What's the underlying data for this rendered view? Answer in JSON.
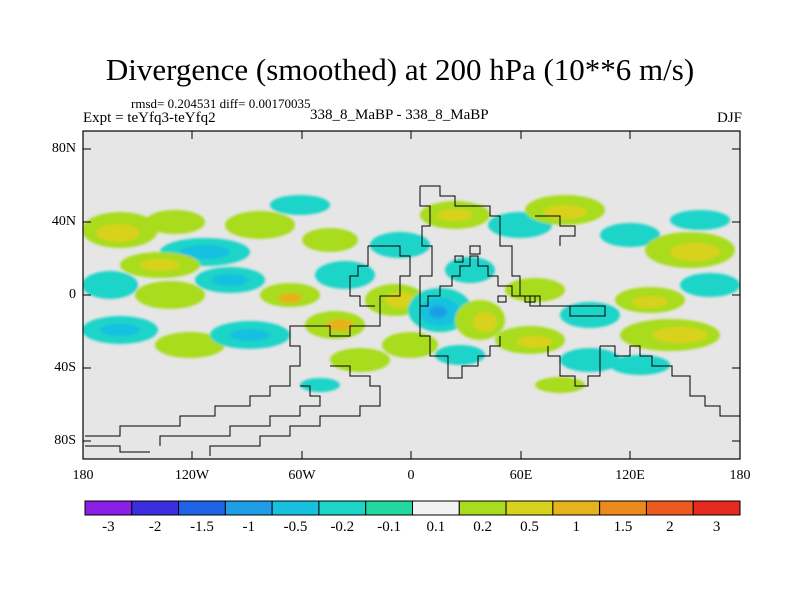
{
  "title": "Divergence (smoothed) at 200 hPa (10**6 m/s)",
  "stats": "rmsd= 0.204531  diff= 0.00170035",
  "expt": "Expt = teYfq3-teYfq2",
  "center_label": "338_8_MaBP - 338_8_MaBP",
  "season": "DJF",
  "y_ticks": [
    "80N",
    "40N",
    "0",
    "40S",
    "80S"
  ],
  "x_ticks": [
    "180",
    "120W",
    "60W",
    "0",
    "60E",
    "120E",
    "180"
  ],
  "colorbar": {
    "labels": [
      "-3",
      "-2",
      "-1.5",
      "-1",
      "-0.5",
      "-0.2",
      "-0.1",
      "0.1",
      "0.2",
      "0.5",
      "1",
      "1.5",
      "2",
      "3"
    ],
    "colors": [
      "#8a1fe6",
      "#3a2ee0",
      "#1f62e6",
      "#1e9ee6",
      "#18c0e0",
      "#1dd4c8",
      "#22d7a0",
      "#f2f2f2",
      "#a8dc1e",
      "#d8d21e",
      "#e6b21e",
      "#ec8a1e",
      "#ec5a1e",
      "#e62a1e"
    ]
  },
  "colors": {
    "background": "#e6e6e6",
    "coast": "#000000"
  }
}
